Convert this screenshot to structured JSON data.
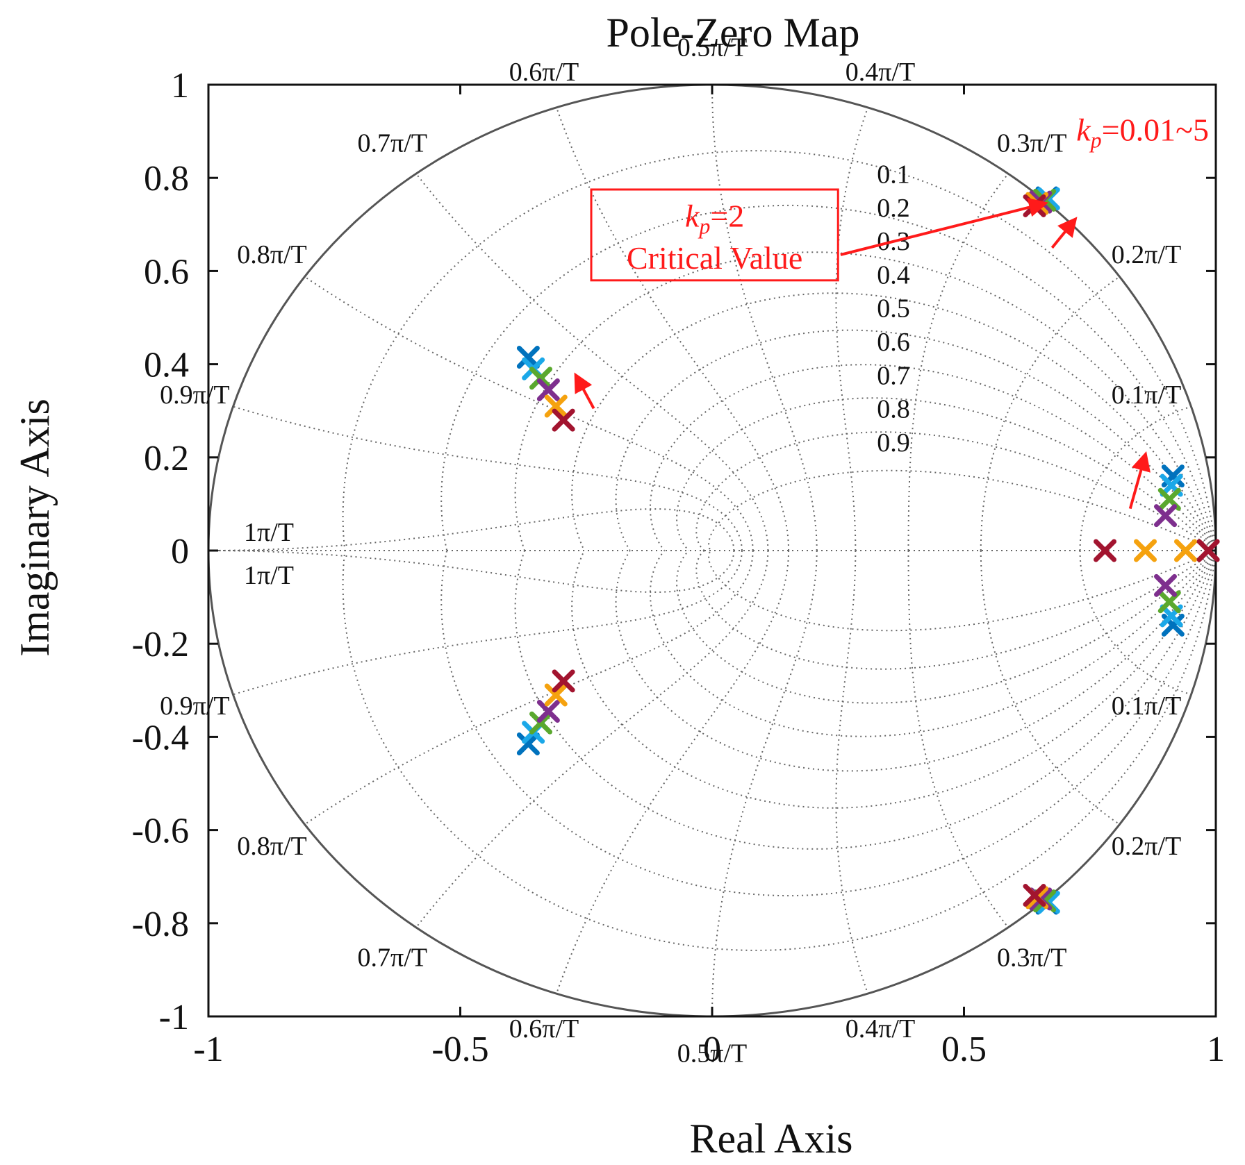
{
  "chart_data": {
    "type": "scatter",
    "title": "Pole-Zero Map",
    "xlabel": "Real Axis",
    "ylabel": "Imaginary Axis",
    "xlim": [
      -1,
      1
    ],
    "ylim": [
      -1,
      1
    ],
    "xticks": [
      "-1",
      "-0.5",
      "0",
      "0.5",
      "1"
    ],
    "yticks": [
      "-1",
      "-0.8",
      "-0.6",
      "-0.4",
      "-0.2",
      "0",
      "0.2",
      "0.4",
      "0.6",
      "0.8",
      "1"
    ],
    "grid": "zgrid",
    "damping_labels": [
      "0.1",
      "0.2",
      "0.3",
      "0.4",
      "0.5",
      "0.6",
      "0.7",
      "0.8",
      "0.9"
    ],
    "frequency_labels": [
      {
        "text": "0.1π/T",
        "angle_deg": 18
      },
      {
        "text": "0.2π/T",
        "angle_deg": 36
      },
      {
        "text": "0.3π/T",
        "angle_deg": 54
      },
      {
        "text": "0.4π/T",
        "angle_deg": 72
      },
      {
        "text": "0.5π/T",
        "angle_deg": 90
      },
      {
        "text": "0.6π/T",
        "angle_deg": 108
      },
      {
        "text": "0.7π/T",
        "angle_deg": 126
      },
      {
        "text": "0.8π/T",
        "angle_deg": 144
      },
      {
        "text": "0.9π/T",
        "angle_deg": 162
      },
      {
        "text": "1π/T",
        "angle_deg": 180
      }
    ],
    "colors": {
      "blue": "#0072bd",
      "cyan": "#1ba8e8",
      "green": "#5aa82e",
      "purple": "#7e2f8e",
      "orange": "#f5a20f",
      "red": "#a2142f"
    },
    "series": [
      {
        "name": "blue",
        "points": [
          [
            -0.365,
            0.415
          ],
          [
            -0.365,
            -0.415
          ],
          [
            0.665,
            0.757
          ],
          [
            0.665,
            -0.757
          ],
          [
            0.915,
            0.16
          ],
          [
            0.915,
            -0.16
          ]
        ]
      },
      {
        "name": "cyan",
        "points": [
          [
            -0.355,
            0.39
          ],
          [
            -0.355,
            -0.39
          ],
          [
            0.668,
            0.755
          ],
          [
            0.668,
            -0.755
          ],
          [
            0.912,
            0.14
          ],
          [
            0.912,
            -0.14
          ]
        ]
      },
      {
        "name": "green",
        "points": [
          [
            -0.34,
            0.37
          ],
          [
            -0.34,
            -0.37
          ],
          [
            0.66,
            0.752
          ],
          [
            0.66,
            -0.752
          ],
          [
            0.908,
            0.11
          ],
          [
            0.908,
            -0.11
          ]
        ]
      },
      {
        "name": "purple",
        "points": [
          [
            -0.325,
            0.345
          ],
          [
            -0.325,
            -0.345
          ],
          [
            0.652,
            0.748
          ],
          [
            0.652,
            -0.748
          ],
          [
            0.9,
            0.075
          ],
          [
            0.9,
            -0.075
          ]
        ]
      },
      {
        "name": "orange",
        "points": [
          [
            -0.31,
            0.31
          ],
          [
            -0.31,
            -0.31
          ],
          [
            0.645,
            0.745
          ],
          [
            0.645,
            -0.745
          ],
          [
            0.86,
            0.0
          ],
          [
            0.94,
            0.0
          ]
        ]
      },
      {
        "name": "red",
        "points": [
          [
            -0.295,
            0.28
          ],
          [
            -0.295,
            -0.28
          ],
          [
            0.64,
            0.74
          ],
          [
            0.64,
            -0.74
          ],
          [
            0.78,
            0.0
          ],
          [
            0.985,
            0.0
          ]
        ]
      }
    ],
    "annotations": {
      "kp_range_symbol": "k",
      "kp_range_sub": "p",
      "kp_range_value": "=0.01~5",
      "kp_critical_symbol": "k",
      "kp_critical_sub": "p",
      "kp_critical_value": "=2",
      "critical_text": "Critical Value",
      "arrows": [
        {
          "from": [
            0.675,
            0.65
          ],
          "to": [
            0.72,
            0.71
          ]
        },
        {
          "from": [
            -0.235,
            0.305
          ],
          "to": [
            -0.27,
            0.375
          ]
        },
        {
          "from": [
            0.83,
            0.09
          ],
          "to": [
            0.86,
            0.205
          ]
        },
        {
          "from": [
            0.255,
            0.635
          ],
          "to": [
            0.66,
            0.745
          ]
        }
      ],
      "critical_box": {
        "x0": -0.24,
        "x1": 0.25,
        "y0": 0.58,
        "y1": 0.775
      }
    }
  }
}
